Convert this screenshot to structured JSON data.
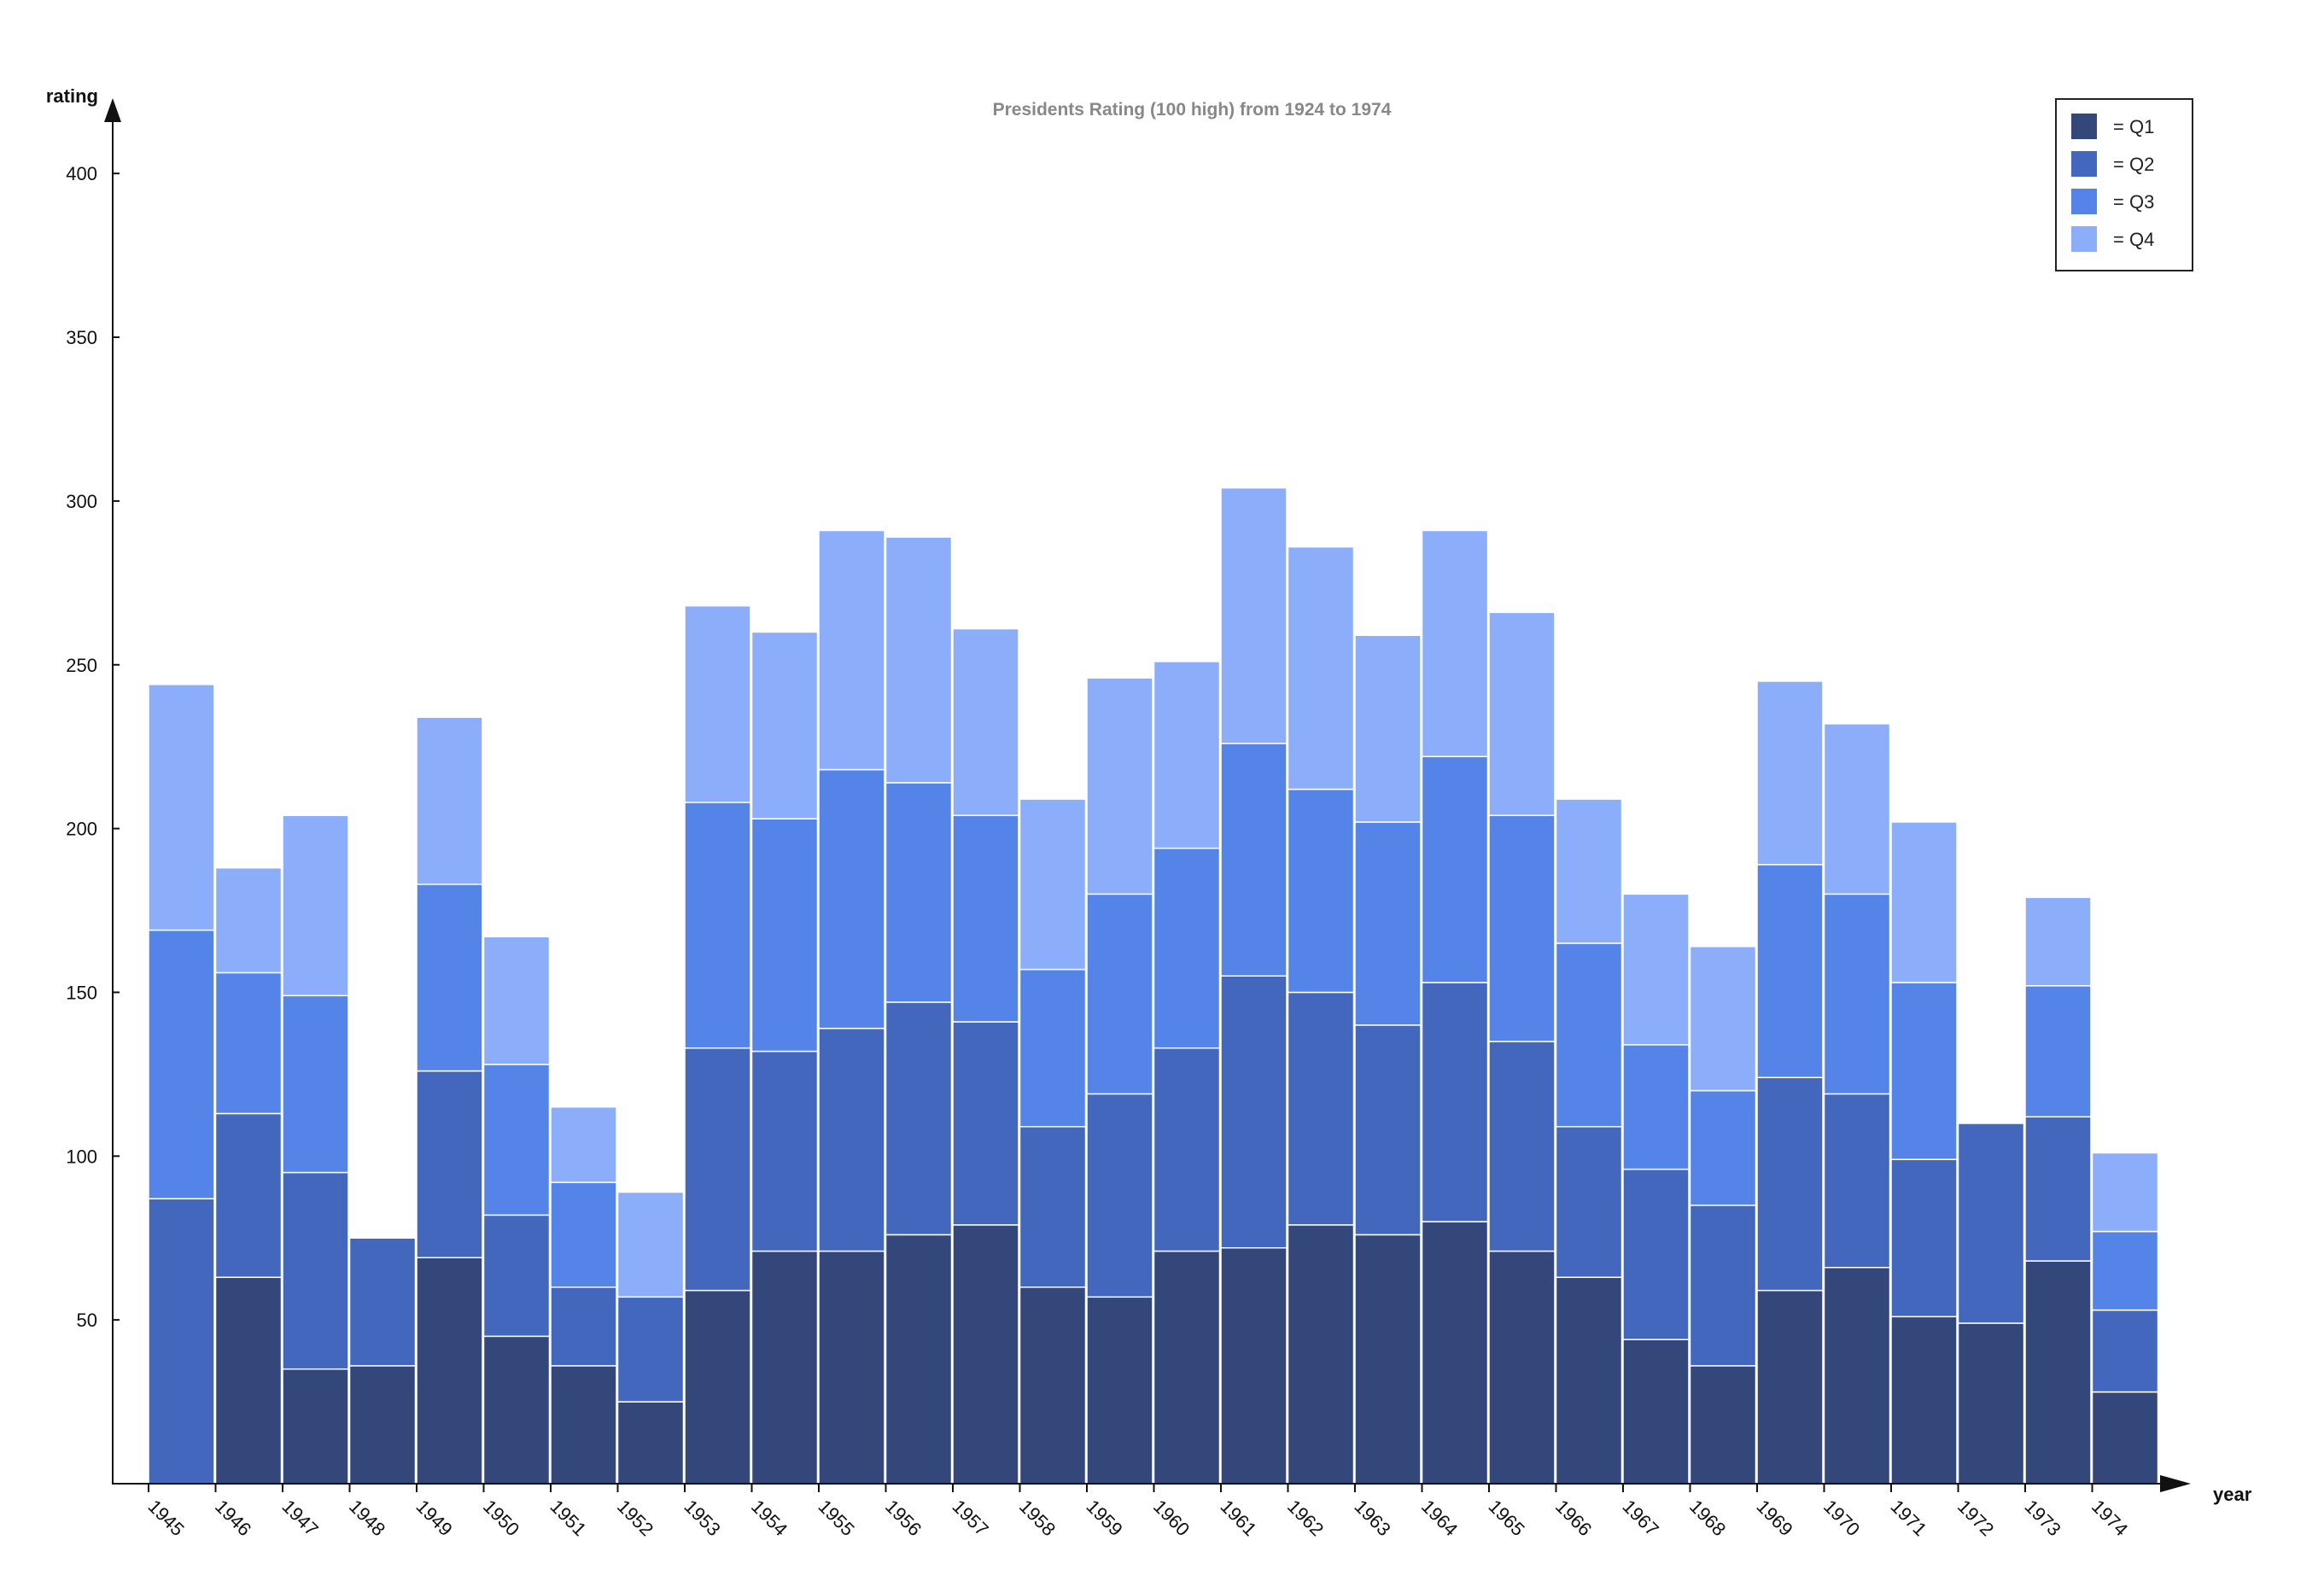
{
  "chart_data": {
    "type": "bar",
    "stacked": true,
    "title": "Presidents Rating (100 high) from 1924 to 1974",
    "xlabel": "year",
    "ylabel": "rating",
    "ylim": [
      0,
      400
    ],
    "yticks": [
      50,
      100,
      150,
      200,
      250,
      300,
      350,
      400
    ],
    "grid": false,
    "legend_position": "top-right",
    "legend_separator": "=",
    "categories": [
      "1945",
      "1946",
      "1947",
      "1948",
      "1949",
      "1950",
      "1951",
      "1952",
      "1953",
      "1954",
      "1955",
      "1956",
      "1957",
      "1958",
      "1959",
      "1960",
      "1961",
      "1962",
      "1963",
      "1964",
      "1965",
      "1966",
      "1967",
      "1968",
      "1969",
      "1970",
      "1971",
      "1972",
      "1973",
      "1974"
    ],
    "series": [
      {
        "name": "Q1",
        "color": "#33477a",
        "values": [
          0,
          63,
          35,
          36,
          69,
          45,
          36,
          25,
          59,
          71,
          71,
          76,
          79,
          60,
          57,
          71,
          72,
          79,
          76,
          80,
          71,
          63,
          44,
          36,
          59,
          66,
          51,
          49,
          68,
          28
        ]
      },
      {
        "name": "Q2",
        "color": "#4267bd",
        "values": [
          87,
          50,
          60,
          39,
          57,
          37,
          24,
          32,
          74,
          61,
          68,
          71,
          62,
          49,
          62,
          62,
          83,
          71,
          64,
          73,
          64,
          46,
          52,
          49,
          65,
          53,
          48,
          61,
          44,
          25
        ]
      },
      {
        "name": "Q3",
        "color": "#5584e8",
        "values": [
          82,
          43,
          54,
          0,
          57,
          46,
          32,
          0,
          75,
          71,
          79,
          67,
          63,
          48,
          61,
          61,
          71,
          62,
          62,
          69,
          69,
          56,
          38,
          35,
          65,
          61,
          54,
          0,
          40,
          24
        ]
      },
      {
        "name": "Q4",
        "color": "#8caefa",
        "values": [
          75,
          32,
          55,
          0,
          51,
          39,
          23,
          32,
          60,
          57,
          73,
          75,
          57,
          52,
          66,
          57,
          78,
          74,
          57,
          69,
          62,
          44,
          46,
          44,
          56,
          52,
          49,
          0,
          27,
          24
        ]
      }
    ],
    "title_color": "#888888"
  }
}
